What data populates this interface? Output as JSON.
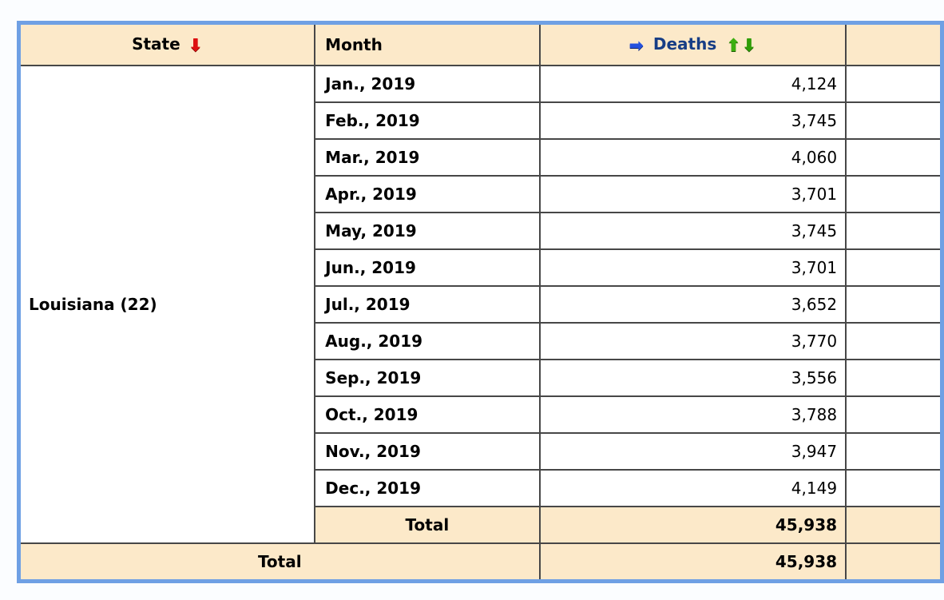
{
  "table": {
    "headers": {
      "state": "State",
      "month": "Month",
      "deaths": "Deaths"
    },
    "icons": {
      "state_sort_descending": "⬇",
      "deaths_pointer": "➡",
      "deaths_sort_ascending": "⬆",
      "deaths_sort_descending": "⬇"
    },
    "state_group": {
      "state_label": "Louisiana (22)",
      "rows": [
        {
          "month": "Jan., 2019",
          "deaths": "4,124"
        },
        {
          "month": "Feb., 2019",
          "deaths": "3,745"
        },
        {
          "month": "Mar., 2019",
          "deaths": "4,060"
        },
        {
          "month": "Apr., 2019",
          "deaths": "3,701"
        },
        {
          "month": "May, 2019",
          "deaths": "3,745"
        },
        {
          "month": "Jun., 2019",
          "deaths": "3,701"
        },
        {
          "month": "Jul., 2019",
          "deaths": "3,652"
        },
        {
          "month": "Aug., 2019",
          "deaths": "3,770"
        },
        {
          "month": "Sep., 2019",
          "deaths": "3,556"
        },
        {
          "month": "Oct., 2019",
          "deaths": "3,788"
        },
        {
          "month": "Nov., 2019",
          "deaths": "3,947"
        },
        {
          "month": "Dec., 2019",
          "deaths": "4,149"
        }
      ],
      "total_label": "Total",
      "total_deaths": "45,938"
    },
    "grand_total": {
      "label": "Total",
      "deaths": "45,938"
    }
  },
  "colors": {
    "outer_border_blue": "#6FA0E4",
    "header_bg_tan": "#FCE9C9",
    "cell_border_dark": "#474747",
    "deaths_header_navy": "#173D85",
    "sort_red": "#DE1010",
    "pointer_blue": "#2451DE",
    "sort_green_up": "#3CAE10",
    "sort_green_down": "#2F9E06",
    "page_bg": "#FBFDFF"
  }
}
